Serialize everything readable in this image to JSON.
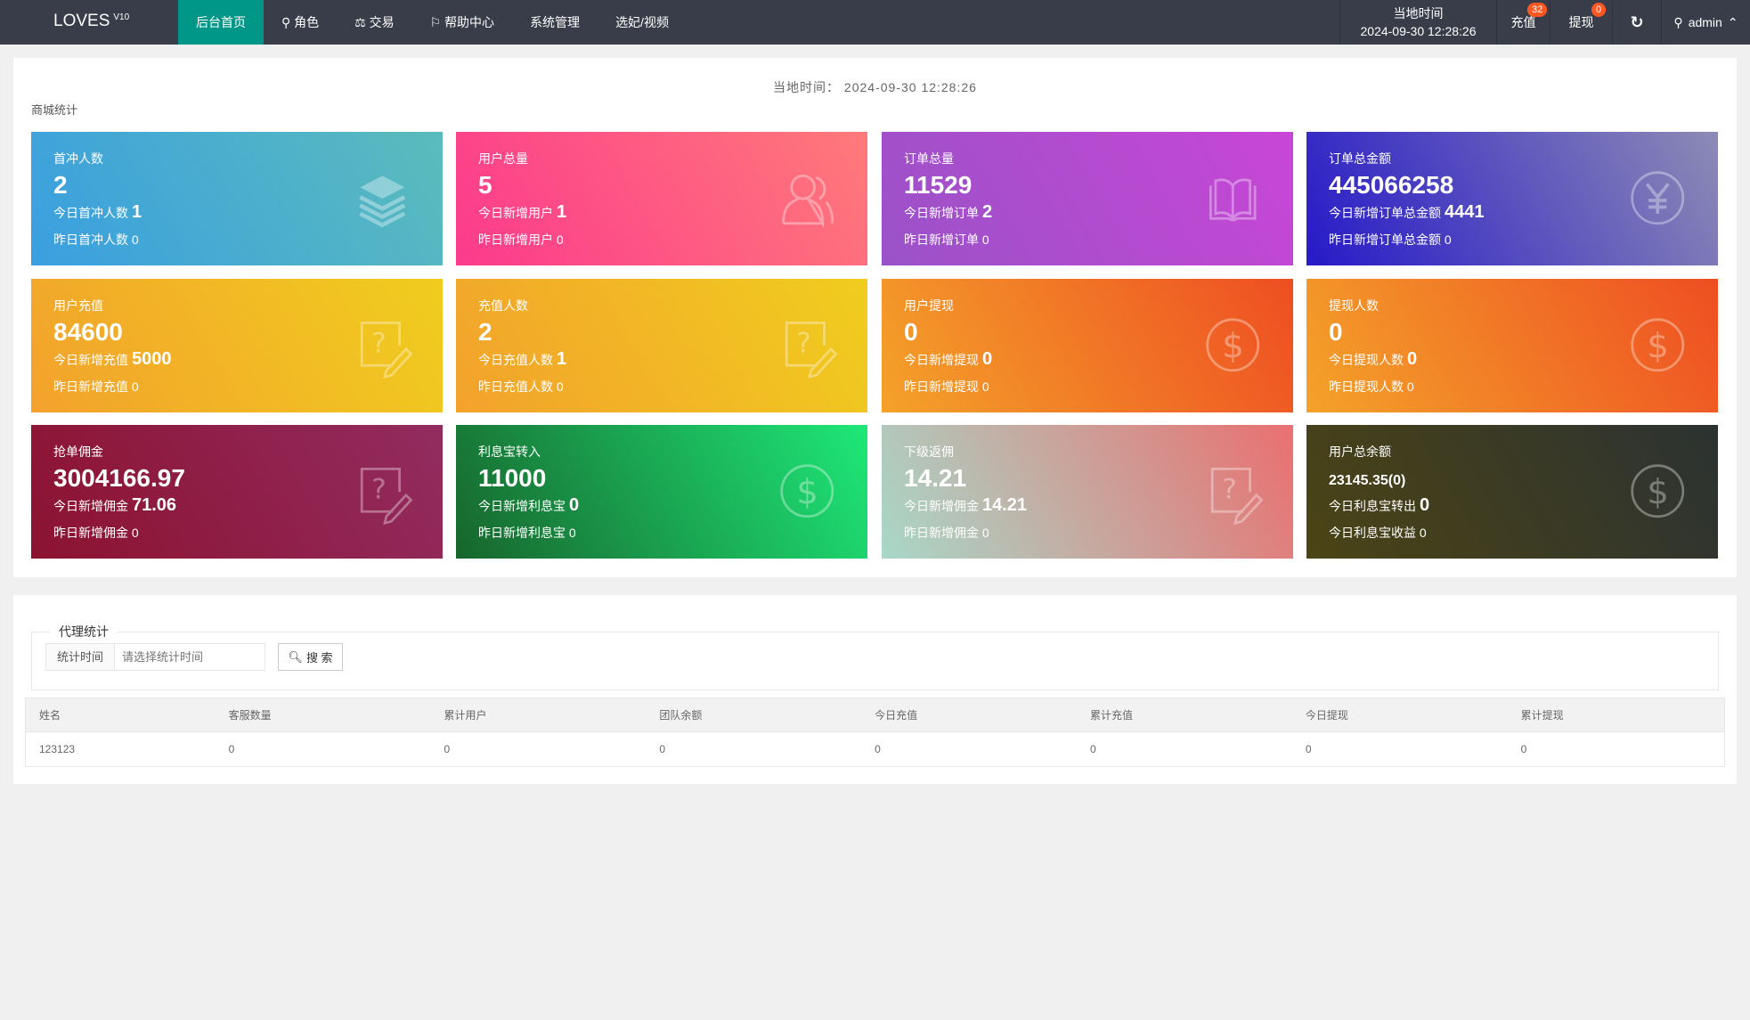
{
  "nav": {
    "logo": "LOVES",
    "version": "V10",
    "items": [
      {
        "label": "后台首页",
        "icon": ""
      },
      {
        "label": "角色",
        "icon": "user-icon"
      },
      {
        "label": "交易",
        "icon": "scale-icon"
      },
      {
        "label": "帮助中心",
        "icon": "flag-icon"
      },
      {
        "label": "系统管理",
        "icon": ""
      },
      {
        "label": "选妃/视频",
        "icon": ""
      }
    ],
    "time_label": "当地时间",
    "time_value": "2024-09-30 12:28:26",
    "recharge": "充值",
    "recharge_badge": "32",
    "withdraw": "提现",
    "withdraw_badge": "0",
    "user": "admin"
  },
  "stats": {
    "current_time": "当地时间：  2024-09-30 12:28:26",
    "section": "商城统计",
    "cards": [
      {
        "title": "首冲人数",
        "value": "2",
        "today_label": "今日首冲人数",
        "today": "1",
        "yest": "昨日首冲人数 0",
        "icon": "layers-icon",
        "gradient": [
          "#3a9fe0",
          "#5bbcbc"
        ]
      },
      {
        "title": "用户总量",
        "value": "5",
        "today_label": "今日新增用户",
        "today": "1",
        "yest": "昨日新增用户 0",
        "icon": "users-icon",
        "gradient": [
          "#fc3a8c",
          "#ff7a7a"
        ]
      },
      {
        "title": "订单总量",
        "value": "11529",
        "today_label": "今日新增订单",
        "today": "2",
        "yest": "昨日新增订单 0",
        "icon": "book-icon",
        "gradient": [
          "#9a52c8",
          "#c846d6"
        ]
      },
      {
        "title": "订单总金额",
        "value": "445066258",
        "today_label": "今日新增订单总金额",
        "today": "4441",
        "yest": "昨日新增订单总金额 0",
        "icon": "yen-icon",
        "gradient": [
          "#2619c8",
          "#8d8bb5"
        ]
      },
      {
        "title": "用户充值",
        "value": "84600",
        "today_label": "今日新增充值",
        "today": "5000",
        "yest": "昨日新增充值 0",
        "icon": "help-edit-icon",
        "gradient": [
          "#f3a22c",
          "#f0cd1e"
        ]
      },
      {
        "title": "充值人数",
        "value": "2",
        "today_label": "今日充值人数",
        "today": "1",
        "yest": "昨日充值人数 0",
        "icon": "help-edit-icon",
        "gradient": [
          "#f3a22c",
          "#f0cd1e"
        ]
      },
      {
        "title": "用户提现",
        "value": "0",
        "today_label": "今日新增提现",
        "today": "0",
        "yest": "昨日新增提现 0",
        "icon": "dollar-icon",
        "gradient": [
          "#f4a22a",
          "#ee4e22"
        ]
      },
      {
        "title": "提现人数",
        "value": "0",
        "today_label": "今日提现人数",
        "today": "0",
        "yest": "昨日提现人数 0",
        "icon": "dollar-icon",
        "gradient": [
          "#f4a22a",
          "#ee4e22"
        ]
      },
      {
        "title": "抢单佣金",
        "value": "3004166.97",
        "today_label": "今日新增佣金",
        "today": "71.06",
        "yest": "昨日新增佣金 0",
        "icon": "help-edit-icon",
        "gradient": [
          "#8c1230",
          "#922c60"
        ]
      },
      {
        "title": "利息宝转入",
        "value": "11000",
        "today_label": "今日新增利息宝",
        "today": "0",
        "yest": "昨日新增利息宝 0",
        "icon": "dollar-icon",
        "gradient": [
          "#17652c",
          "#1ee878"
        ]
      },
      {
        "title": "下级返佣",
        "value": "14.21",
        "today_label": "今日新增佣金",
        "today": "14.21",
        "yest": "昨日新增佣金 0",
        "icon": "help-edit-icon",
        "gradient": [
          "#a8d8c8",
          "#ea7070"
        ]
      },
      {
        "title": "用户总余额",
        "value": "23145.35(0)",
        "today_label": "今日利息宝转出",
        "today": "0",
        "yest": "今日利息宝收益 0",
        "icon": "dollar-icon",
        "gradient": [
          "#4b4415",
          "#2c3232"
        ]
      }
    ]
  },
  "agent": {
    "legend": "代理统计",
    "time_label": "统计时间",
    "time_placeholder": "请选择统计时间",
    "search": "搜 索",
    "columns": [
      "姓名",
      "客服数量",
      "累计用户",
      "团队余额",
      "今日充值",
      "累计充值",
      "今日提现",
      "累计提现"
    ],
    "rows": [
      [
        "123123",
        "0",
        "0",
        "0",
        "0",
        "0",
        "0",
        "0"
      ]
    ]
  }
}
